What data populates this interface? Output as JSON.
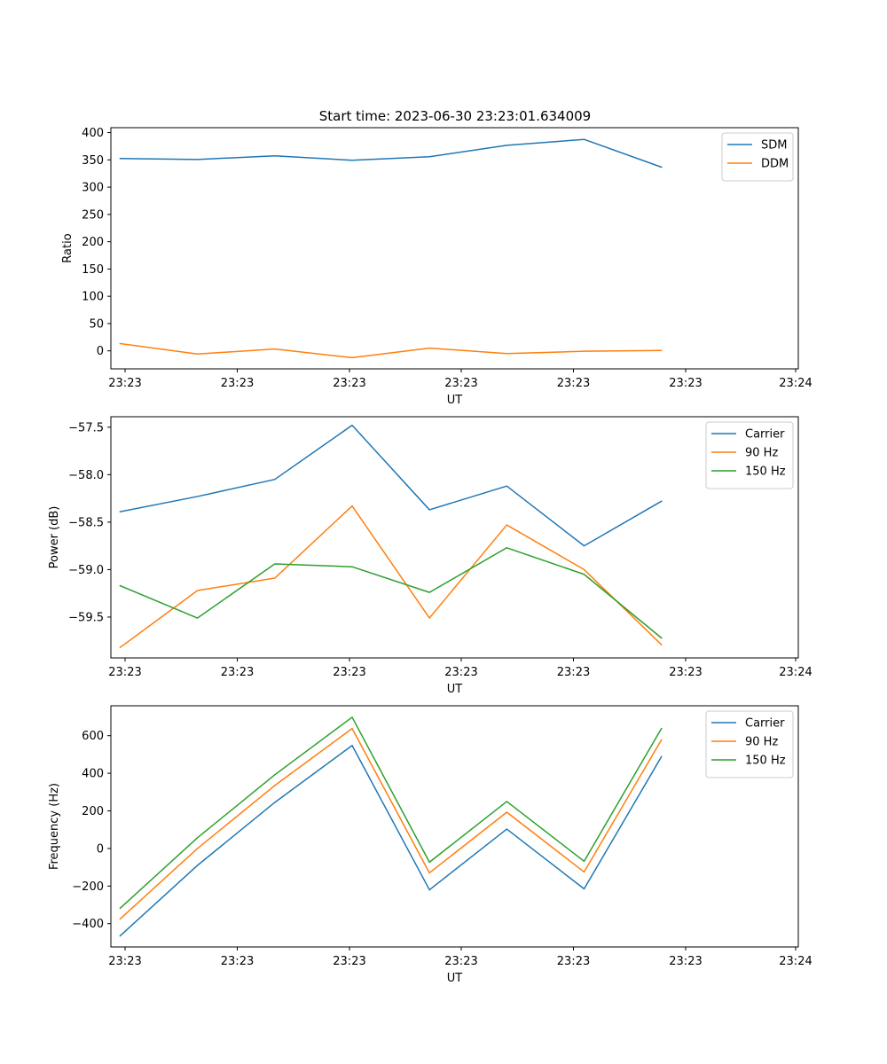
{
  "figure": {
    "title": "Start time: 2023-06-30 23:23:01.634009"
  },
  "chart_data": [
    {
      "type": "line",
      "title": "Start time: 2023-06-30 23:23:01.634009",
      "xlabel": "UT",
      "ylabel": "Ratio",
      "x_tick_labels": [
        "23:23",
        "23:23",
        "23:23",
        "23:23",
        "23:23",
        "23:23",
        "23:24"
      ],
      "y_ticks": [
        0,
        50,
        100,
        150,
        200,
        250,
        300,
        350,
        400
      ],
      "ylim": [
        -33,
        409
      ],
      "xlim": [
        -0.12,
        8.77
      ],
      "x": [
        0,
        1,
        2,
        3,
        4,
        5,
        6,
        7
      ],
      "grid": false,
      "legend": "top-right",
      "series": [
        {
          "name": "SDM",
          "color": "#1f77b4",
          "values": [
            352.5,
            350.8,
            357.5,
            349.2,
            355.8,
            376.7,
            387.5,
            336.7
          ]
        },
        {
          "name": "DDM",
          "color": "#ff7f0e",
          "values": [
            13.3,
            -5.8,
            3.3,
            -12.5,
            5.0,
            -5.0,
            -0.8,
            0.8
          ]
        }
      ]
    },
    {
      "type": "line",
      "title": "",
      "xlabel": "UT",
      "ylabel": "Power (dB)",
      "x_tick_labels": [
        "23:23",
        "23:23",
        "23:23",
        "23:23",
        "23:23",
        "23:23",
        "23:24"
      ],
      "y_ticks": [
        -59.5,
        -59.0,
        -58.5,
        -58.0,
        -57.5
      ],
      "y_tick_labels": [
        "−59.5",
        "−59.0",
        "−58.5",
        "−58.0",
        "−57.5"
      ],
      "ylim": [
        -59.93,
        -57.39
      ],
      "xlim": [
        -0.12,
        8.77
      ],
      "x": [
        0,
        1,
        2,
        3,
        4,
        5,
        6,
        7
      ],
      "grid": false,
      "legend": "top-right",
      "series": [
        {
          "name": "Carrier",
          "color": "#1f77b4",
          "values": [
            -58.39,
            -58.23,
            -58.05,
            -57.48,
            -58.37,
            -58.12,
            -58.75,
            -58.28
          ]
        },
        {
          "name": "90 Hz",
          "color": "#ff7f0e",
          "values": [
            -59.82,
            -59.22,
            -59.09,
            -58.33,
            -59.51,
            -58.53,
            -59.0,
            -59.79
          ]
        },
        {
          "name": "150 Hz",
          "color": "#2ca02c",
          "values": [
            -59.17,
            -59.51,
            -58.94,
            -58.97,
            -59.24,
            -58.77,
            -59.05,
            -59.72
          ]
        }
      ]
    },
    {
      "type": "line",
      "title": "",
      "xlabel": "UT",
      "ylabel": "Frequency (Hz)",
      "x_tick_labels": [
        "23:23",
        "23:23",
        "23:23",
        "23:23",
        "23:23",
        "23:23",
        "23:24"
      ],
      "y_ticks": [
        -400,
        -200,
        0,
        200,
        400,
        600
      ],
      "y_tick_labels": [
        "−400",
        "−200",
        "0",
        "200",
        "400",
        "600"
      ],
      "ylim": [
        -524,
        759
      ],
      "xlim": [
        -0.12,
        8.77
      ],
      "x": [
        0,
        1,
        2,
        3,
        4,
        5,
        6,
        7
      ],
      "grid": false,
      "legend": "top-right",
      "series": [
        {
          "name": "Carrier",
          "color": "#1f77b4",
          "values": [
            -465,
            -90,
            245,
            548,
            -220,
            103,
            -215,
            488
          ]
        },
        {
          "name": "90 Hz",
          "color": "#ff7f0e",
          "values": [
            -375,
            0,
            335,
            638,
            -130,
            193,
            -125,
            578
          ]
        },
        {
          "name": "150 Hz",
          "color": "#2ca02c",
          "values": [
            -318,
            57,
            392,
            698,
            -73,
            250,
            -68,
            638
          ]
        }
      ]
    }
  ]
}
